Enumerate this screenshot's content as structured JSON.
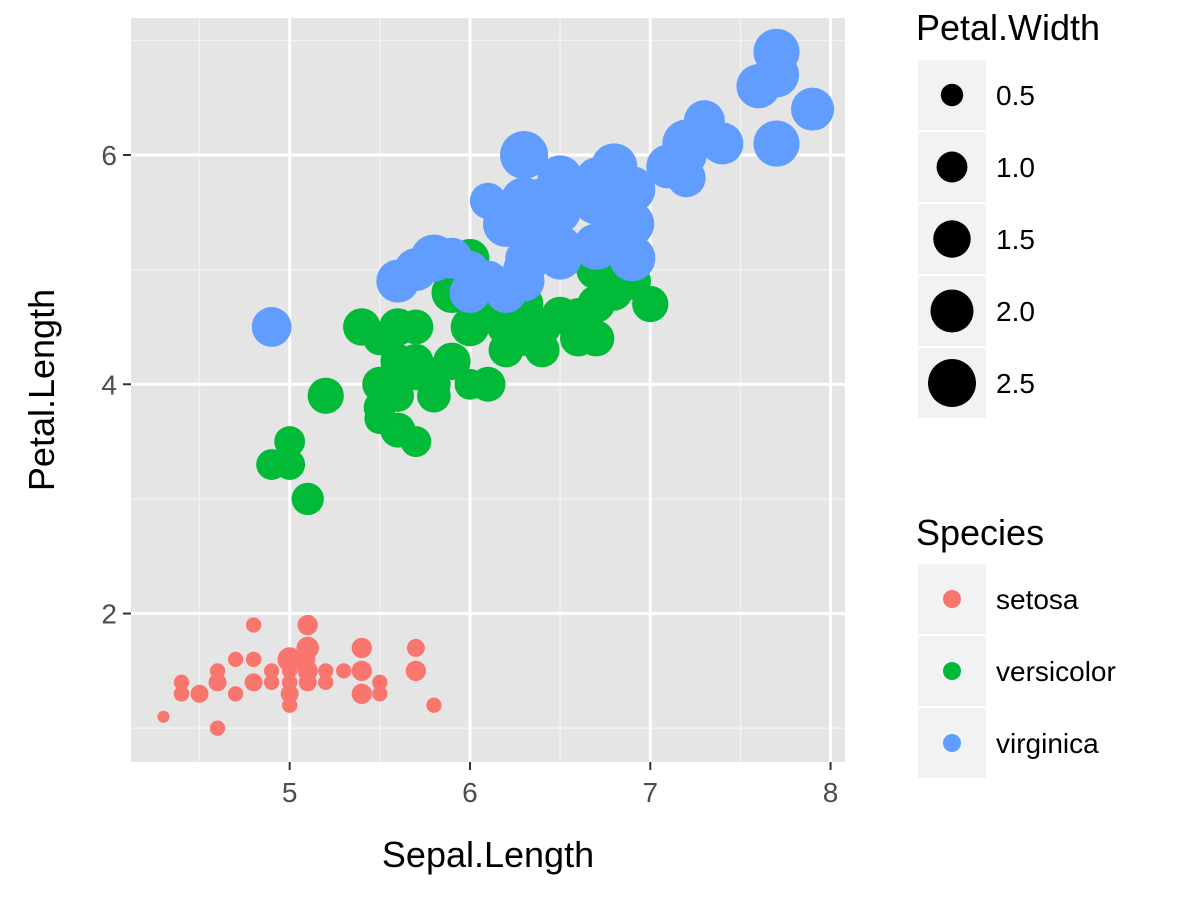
{
  "chart_data": {
    "type": "scatter",
    "title": "",
    "xlabel": "Sepal.Length",
    "ylabel": "Petal.Length",
    "xlim": [
      4.12,
      8.08
    ],
    "ylim": [
      0.705,
      7.195
    ],
    "x_ticks": [
      5,
      6,
      7,
      8
    ],
    "y_ticks": [
      2,
      4,
      6
    ],
    "x_minor": [
      4.5,
      5.5,
      6.5,
      7.5
    ],
    "y_minor": [
      1,
      3,
      5,
      7
    ],
    "grid": true,
    "panel_background": "#e5e5e5",
    "size_legend": {
      "title": "Petal.Width",
      "values": [
        0.5,
        1.0,
        1.5,
        2.0,
        2.5
      ],
      "labels": [
        "0.5",
        "1.0",
        "1.5",
        "2.0",
        "2.5"
      ],
      "range": [
        0.1,
        2.5
      ]
    },
    "color_legend": {
      "title": "Species",
      "placement": "right"
    },
    "series": [
      {
        "name": "setosa",
        "color": "#F8766D",
        "points": [
          [
            5.1,
            1.4,
            0.2
          ],
          [
            4.9,
            1.4,
            0.2
          ],
          [
            4.7,
            1.3,
            0.2
          ],
          [
            4.6,
            1.5,
            0.2
          ],
          [
            5.0,
            1.4,
            0.2
          ],
          [
            5.4,
            1.7,
            0.4
          ],
          [
            4.6,
            1.4,
            0.3
          ],
          [
            5.0,
            1.5,
            0.2
          ],
          [
            4.4,
            1.4,
            0.2
          ],
          [
            4.9,
            1.5,
            0.1
          ],
          [
            5.4,
            1.5,
            0.2
          ],
          [
            4.8,
            1.6,
            0.2
          ],
          [
            4.8,
            1.4,
            0.1
          ],
          [
            4.3,
            1.1,
            0.1
          ],
          [
            5.8,
            1.2,
            0.2
          ],
          [
            5.7,
            1.5,
            0.4
          ],
          [
            5.4,
            1.3,
            0.4
          ],
          [
            5.1,
            1.4,
            0.3
          ],
          [
            5.7,
            1.7,
            0.3
          ],
          [
            5.1,
            1.5,
            0.3
          ],
          [
            5.4,
            1.7,
            0.2
          ],
          [
            5.1,
            1.5,
            0.4
          ],
          [
            4.6,
            1.0,
            0.2
          ],
          [
            5.1,
            1.7,
            0.5
          ],
          [
            4.8,
            1.9,
            0.2
          ],
          [
            5.0,
            1.6,
            0.2
          ],
          [
            5.0,
            1.6,
            0.4
          ],
          [
            5.2,
            1.5,
            0.2
          ],
          [
            5.2,
            1.4,
            0.2
          ],
          [
            4.7,
            1.6,
            0.2
          ],
          [
            4.8,
            1.6,
            0.2
          ],
          [
            5.4,
            1.5,
            0.4
          ],
          [
            5.2,
            1.5,
            0.1
          ],
          [
            5.5,
            1.4,
            0.2
          ],
          [
            4.9,
            1.5,
            0.2
          ],
          [
            5.0,
            1.2,
            0.2
          ],
          [
            5.5,
            1.3,
            0.2
          ],
          [
            4.9,
            1.4,
            0.1
          ],
          [
            4.4,
            1.3,
            0.2
          ],
          [
            5.1,
            1.5,
            0.2
          ],
          [
            5.0,
            1.3,
            0.3
          ],
          [
            4.5,
            1.3,
            0.3
          ],
          [
            4.4,
            1.3,
            0.2
          ],
          [
            5.0,
            1.6,
            0.6
          ],
          [
            5.1,
            1.9,
            0.4
          ],
          [
            4.8,
            1.4,
            0.3
          ],
          [
            5.1,
            1.6,
            0.2
          ],
          [
            4.6,
            1.4,
            0.2
          ],
          [
            5.3,
            1.5,
            0.2
          ],
          [
            5.0,
            1.4,
            0.2
          ]
        ]
      },
      {
        "name": "versicolor",
        "color": "#00BA38",
        "points": [
          [
            7.0,
            4.7,
            1.4
          ],
          [
            6.4,
            4.5,
            1.5
          ],
          [
            6.9,
            4.9,
            1.5
          ],
          [
            5.5,
            4.0,
            1.3
          ],
          [
            6.5,
            4.6,
            1.5
          ],
          [
            5.7,
            4.5,
            1.3
          ],
          [
            6.3,
            4.7,
            1.6
          ],
          [
            4.9,
            3.3,
            1.0
          ],
          [
            6.6,
            4.6,
            1.3
          ],
          [
            5.2,
            3.9,
            1.4
          ],
          [
            5.0,
            3.5,
            1.0
          ],
          [
            5.9,
            4.2,
            1.5
          ],
          [
            6.0,
            4.0,
            1.0
          ],
          [
            6.1,
            4.7,
            1.4
          ],
          [
            5.6,
            3.6,
            1.3
          ],
          [
            6.7,
            4.4,
            1.4
          ],
          [
            5.6,
            4.5,
            1.5
          ],
          [
            5.8,
            4.1,
            1.0
          ],
          [
            6.2,
            4.5,
            1.5
          ],
          [
            5.6,
            3.9,
            1.1
          ],
          [
            5.9,
            4.8,
            1.8
          ],
          [
            6.1,
            4.0,
            1.3
          ],
          [
            6.3,
            4.9,
            1.5
          ],
          [
            6.1,
            4.7,
            1.2
          ],
          [
            6.4,
            4.3,
            1.3
          ],
          [
            6.6,
            4.4,
            1.4
          ],
          [
            6.8,
            4.8,
            1.4
          ],
          [
            6.7,
            5.0,
            1.7
          ],
          [
            6.0,
            4.5,
            1.5
          ],
          [
            5.7,
            3.5,
            1.0
          ],
          [
            5.5,
            3.8,
            1.1
          ],
          [
            5.5,
            3.7,
            1.0
          ],
          [
            5.8,
            3.9,
            1.2
          ],
          [
            6.0,
            5.1,
            1.6
          ],
          [
            5.4,
            4.5,
            1.5
          ],
          [
            6.0,
            4.5,
            1.6
          ],
          [
            6.7,
            4.7,
            1.5
          ],
          [
            6.3,
            4.4,
            1.3
          ],
          [
            5.6,
            4.1,
            1.3
          ],
          [
            5.5,
            4.0,
            1.3
          ],
          [
            5.5,
            4.4,
            1.2
          ],
          [
            6.1,
            4.6,
            1.4
          ],
          [
            5.8,
            4.0,
            1.2
          ],
          [
            5.0,
            3.3,
            1.0
          ],
          [
            5.6,
            4.2,
            1.3
          ],
          [
            5.7,
            4.2,
            1.2
          ],
          [
            5.7,
            4.2,
            1.3
          ],
          [
            6.2,
            4.3,
            1.3
          ],
          [
            5.1,
            3.0,
            1.1
          ],
          [
            5.7,
            4.1,
            1.3
          ]
        ]
      },
      {
        "name": "virginica",
        "color": "#619CFF",
        "points": [
          [
            6.3,
            6.0,
            2.5
          ],
          [
            5.8,
            5.1,
            1.9
          ],
          [
            7.1,
            5.9,
            2.1
          ],
          [
            6.3,
            5.6,
            1.8
          ],
          [
            6.5,
            5.8,
            2.2
          ],
          [
            7.6,
            6.6,
            2.1
          ],
          [
            4.9,
            4.5,
            1.7
          ],
          [
            7.3,
            6.3,
            1.8
          ],
          [
            6.7,
            5.8,
            1.8
          ],
          [
            7.2,
            6.1,
            2.5
          ],
          [
            6.5,
            5.1,
            2.0
          ],
          [
            6.4,
            5.3,
            1.9
          ],
          [
            6.8,
            5.5,
            2.1
          ],
          [
            5.7,
            5.0,
            2.0
          ],
          [
            5.8,
            5.1,
            2.4
          ],
          [
            6.4,
            5.3,
            2.3
          ],
          [
            6.5,
            5.5,
            1.8
          ],
          [
            7.7,
            6.7,
            2.2
          ],
          [
            7.7,
            6.9,
            2.3
          ],
          [
            6.0,
            5.0,
            1.5
          ],
          [
            6.9,
            5.7,
            2.3
          ],
          [
            5.6,
            4.9,
            2.0
          ],
          [
            7.7,
            6.7,
            2.0
          ],
          [
            6.3,
            4.9,
            1.8
          ],
          [
            6.7,
            5.7,
            2.1
          ],
          [
            7.2,
            6.0,
            1.8
          ],
          [
            6.2,
            4.8,
            1.8
          ],
          [
            6.1,
            4.9,
            1.8
          ],
          [
            6.4,
            5.6,
            2.1
          ],
          [
            7.2,
            5.8,
            1.6
          ],
          [
            7.4,
            6.1,
            1.9
          ],
          [
            7.9,
            6.4,
            2.0
          ],
          [
            6.4,
            5.6,
            2.2
          ],
          [
            6.3,
            5.1,
            1.5
          ],
          [
            6.1,
            5.6,
            1.4
          ],
          [
            7.7,
            6.1,
            2.3
          ],
          [
            6.3,
            5.6,
            2.4
          ],
          [
            6.4,
            5.5,
            1.8
          ],
          [
            6.0,
            4.8,
            1.8
          ],
          [
            6.9,
            5.4,
            2.1
          ],
          [
            6.7,
            5.6,
            2.4
          ],
          [
            6.9,
            5.1,
            2.3
          ],
          [
            5.8,
            5.1,
            1.9
          ],
          [
            6.8,
            5.9,
            2.3
          ],
          [
            6.7,
            5.7,
            2.5
          ],
          [
            6.7,
            5.2,
            2.3
          ],
          [
            6.3,
            5.0,
            1.9
          ],
          [
            6.5,
            5.2,
            2.0
          ],
          [
            6.2,
            5.4,
            2.3
          ],
          [
            5.9,
            5.1,
            1.8
          ]
        ]
      }
    ]
  }
}
